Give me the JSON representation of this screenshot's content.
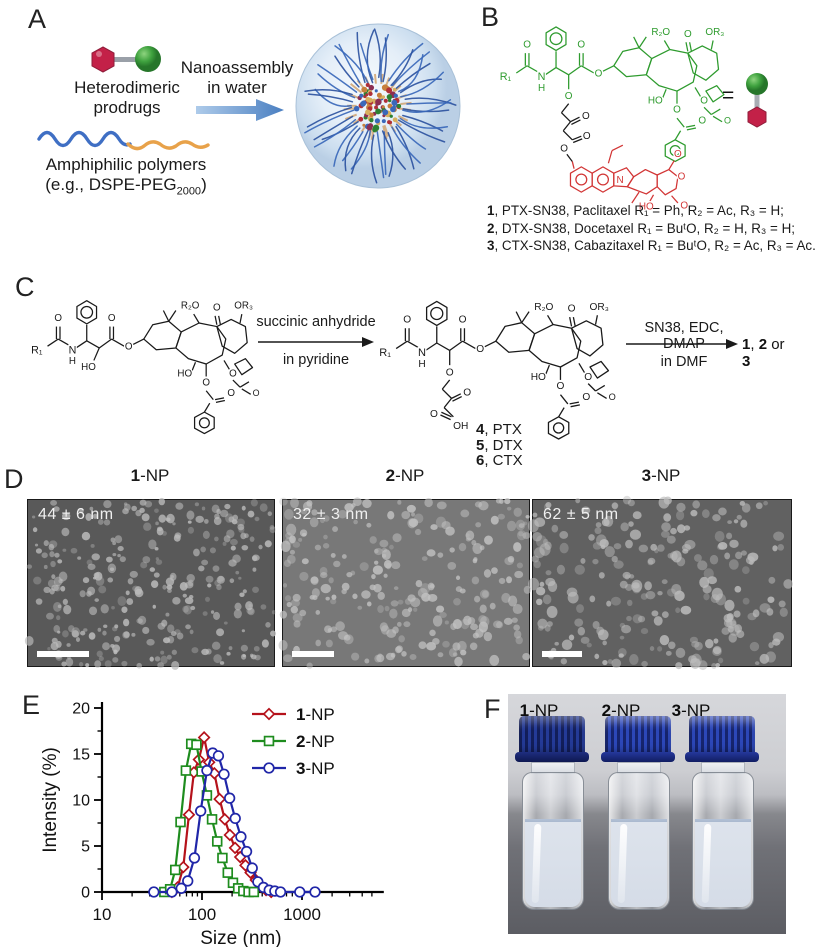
{
  "panels": {
    "a": {
      "letter": "A",
      "prodrugs_label": [
        "Heterodimeric",
        "prodrugs"
      ],
      "arrow_label": [
        "Nanoassembly",
        "in water"
      ],
      "polymer_label_line1": "Amphiphilic polymers",
      "polymer_label_pre": "(e.g., DSPE-PEG",
      "polymer_label_sub": "2000",
      "polymer_label_post": ")"
    },
    "b": {
      "letter": "B",
      "equals_sign": "=",
      "compound_lines": [
        {
          "num": "1",
          "text": ", PTX-SN38, Paclitaxel  R₁ = Ph, R₂ = Ac, R₃ = H;"
        },
        {
          "num": "2",
          "text": ", DTX-SN38, Docetaxel  R₁ = BuᵗO, R₂ = H, R₃ = H;"
        },
        {
          "num": "3",
          "text": ", CTX-SN38, Cabazitaxel  R₁ = BuᵗO, R₂ = Ac, R₃ = Ac."
        }
      ]
    },
    "c": {
      "letter": "C",
      "arrow1_top": "succinic anhydride",
      "arrow1_bottom": "in pyridine",
      "arrow2_top": "SN38, EDC, DMAP",
      "arrow2_bottom": "in DMF",
      "product_parts": {
        "p1": "1",
        "sep": ", ",
        "p2": "2",
        "or": " or ",
        "p3": "3"
      },
      "products": [
        {
          "num": "4",
          "text": ", PTX"
        },
        {
          "num": "5",
          "text": ", DTX"
        },
        {
          "num": "6",
          "text": ", CTX"
        }
      ]
    },
    "d": {
      "letter": "D",
      "images": [
        {
          "num": "1",
          "suffix": "-NP",
          "size_label": "44 ± 6 nm"
        },
        {
          "num": "2",
          "suffix": "-NP",
          "size_label": "32 ± 3 nm"
        },
        {
          "num": "3",
          "suffix": "-NP",
          "size_label": "62 ± 5 nm"
        }
      ]
    },
    "e": {
      "letter": "E"
    },
    "f": {
      "letter": "F",
      "vial_labels": [
        {
          "num": "1",
          "suffix": "-NP"
        },
        {
          "num": "2",
          "suffix": "-NP"
        },
        {
          "num": "3",
          "suffix": "-NP"
        }
      ]
    }
  },
  "struct": {
    "r1": "R₁",
    "o": "O",
    "n": "N",
    "h": "H",
    "ho": "HO",
    "oh": "OH",
    "r2o": "R₂O",
    "or3": "OR₃"
  },
  "colors": {
    "taxane_green": "#2e9b2e",
    "sn38_red": "#d23535",
    "scheme_black": "#1a1a1a",
    "arrow_blue": "#4a7fc1",
    "polymer_blue": "#3f6fc4",
    "polymer_orange": "#e8a24a"
  },
  "chart_data": {
    "type": "line",
    "title": "",
    "xlabel": "Size (nm)",
    "ylabel": "Intensity (%)",
    "xscale": "log",
    "xlim": [
      10,
      6000
    ],
    "ylim": [
      0,
      20
    ],
    "xticks": [
      10,
      100,
      1000
    ],
    "yticks": [
      0,
      5,
      10,
      15,
      20
    ],
    "grid": false,
    "legend_position": "top-right",
    "series": [
      {
        "name": "1-NP",
        "bold_part": "1",
        "label_rest": "-NP",
        "color": "#b5121b",
        "marker": "diamond",
        "x": [
          50,
          57,
          65,
          74,
          83,
          93,
          105,
          118,
          133,
          150,
          169,
          190,
          214,
          241,
          272,
          306,
          345,
          388,
          437,
          492
        ],
        "y": [
          0,
          0.5,
          2.7,
          8.4,
          13.0,
          14.4,
          16.8,
          14.1,
          12.9,
          10.1,
          7.9,
          6.2,
          4.8,
          3.8,
          2.9,
          2.1,
          1.3,
          0.6,
          0.2,
          0
        ]
      },
      {
        "name": "2-NP",
        "bold_part": "2",
        "label_rest": "-NP",
        "color": "#1e8c1e",
        "marker": "square",
        "x": [
          42,
          48,
          54,
          61,
          69,
          78,
          88,
          99,
          112,
          126,
          142,
          160,
          181,
          204,
          230,
          259,
          292,
          330
        ],
        "y": [
          0,
          0.3,
          2.4,
          7.6,
          13.2,
          16.1,
          16.0,
          13.1,
          10.5,
          7.9,
          5.5,
          3.7,
          2.1,
          1.0,
          0.4,
          0.1,
          0,
          0
        ]
      },
      {
        "name": "3-NP",
        "bold_part": "3",
        "label_rest": "-NP",
        "color": "#2026a8",
        "marker": "circle",
        "x": [
          33,
          50,
          62,
          72,
          84,
          97,
          112,
          128,
          146,
          166,
          189,
          215,
          245,
          279,
          318,
          362,
          412,
          470,
          535,
          610,
          950,
          1350
        ],
        "y": [
          0,
          0,
          0.4,
          1.2,
          3.7,
          8.8,
          13.2,
          15.1,
          14.8,
          12.8,
          10.2,
          8.0,
          6.0,
          4.4,
          2.6,
          1.1,
          0.5,
          0.2,
          0.1,
          0,
          0,
          0
        ]
      }
    ]
  }
}
